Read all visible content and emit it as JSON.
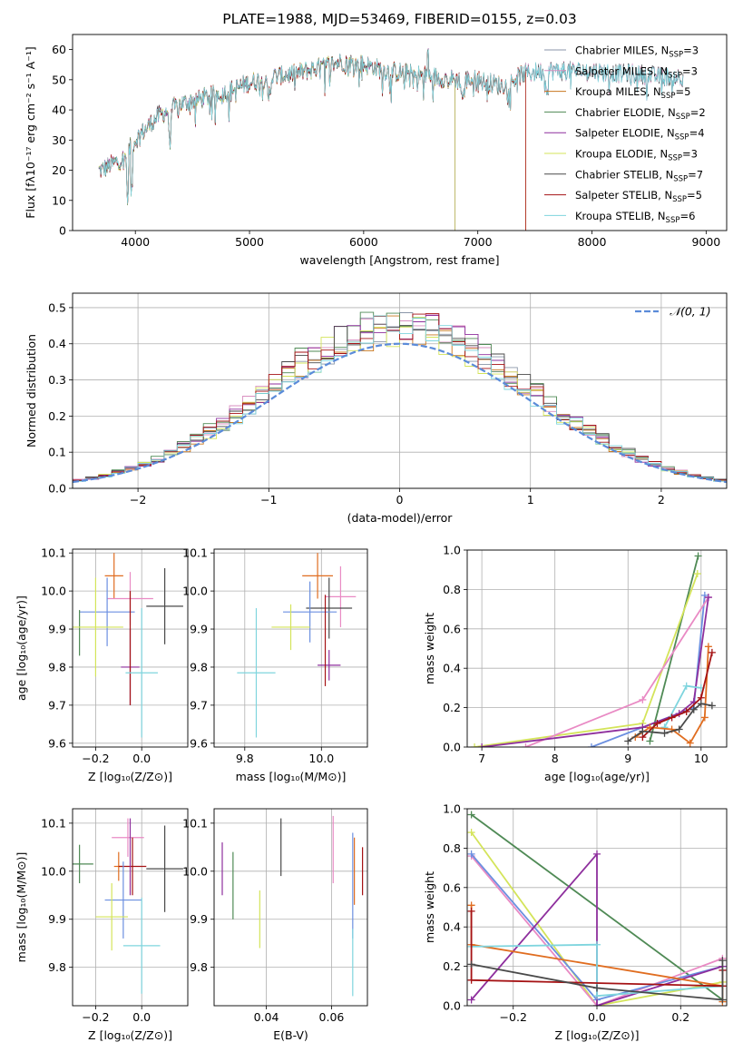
{
  "figure": {
    "title": "PLATE=1988, MJD=53469, FIBERID=0155, z=0.03"
  },
  "colors": {
    "Chabrier MILES": "#8a96a8",
    "Salpeter MILES": "#d98fc0",
    "Kroupa MILES": "#c8771f",
    "Chabrier ELODIE": "#4f8a55",
    "Salpeter ELODIE": "#8e2f9d",
    "Kroupa ELODIE": "#d4e45a",
    "Chabrier STELIB": "#4a4a4a",
    "Salpeter STELIB": "#a51214",
    "Kroupa STELIB": "#7fd5de",
    "normal_curve": "#5b8bd9",
    "c_blue": "#6b8fe0",
    "c_orange": "#e06d20",
    "c_pink": "#e98ac4"
  },
  "chart_data": [
    {
      "id": "spectrum",
      "type": "line",
      "xlabel": "wavelength [Angstrom, rest frame]",
      "ylabel": "Flux [fλ10⁻¹⁷ erg cm⁻² s⁻¹ A⁻¹]",
      "xlim": [
        3450,
        9180
      ],
      "ylim": [
        0,
        65
      ],
      "xticks": [
        4000,
        5000,
        6000,
        7000,
        8000,
        9000
      ],
      "yticks": [
        0,
        10,
        20,
        30,
        40,
        50,
        60
      ],
      "legend_position": "right",
      "legend": [
        {
          "main": "Chabrier MILES, N",
          "sub": "SSP",
          "tail": "=3"
        },
        {
          "main": "Salpeter MILES, N",
          "sub": "SSP",
          "tail": "=3"
        },
        {
          "main": "Kroupa MILES, N",
          "sub": "SSP",
          "tail": "=5"
        },
        {
          "main": "Chabrier ELODIE, N",
          "sub": "SSP",
          "tail": "=2"
        },
        {
          "main": "Salpeter ELODIE, N",
          "sub": "SSP",
          "tail": "=4"
        },
        {
          "main": "Kroupa ELODIE, N",
          "sub": "SSP",
          "tail": "=3"
        },
        {
          "main": "Chabrier STELIB, N",
          "sub": "SSP",
          "tail": "=7"
        },
        {
          "main": "Salpeter STELIB, N",
          "sub": "SSP",
          "tail": "=5"
        },
        {
          "main": "Kroupa STELIB, N",
          "sub": "SSP",
          "tail": "=6"
        }
      ],
      "continuum_x": [
        3700,
        3800,
        3900,
        4000,
        4100,
        4200,
        4400,
        4600,
        4800,
        5000,
        5200,
        5400,
        5600,
        5800,
        6000,
        6200,
        6400,
        6600,
        6800,
        7000,
        7200,
        7400,
        7600,
        7800,
        8000,
        8200,
        8400,
        8600,
        8800
      ],
      "continuum_y": [
        20,
        22,
        24,
        30,
        34,
        38,
        42,
        44,
        46,
        49,
        51,
        52,
        54,
        56,
        55,
        53,
        52,
        51,
        50,
        50,
        48,
        52,
        53,
        53,
        53,
        52,
        52,
        51,
        51
      ],
      "model_ends": {
        "Chabrier MILES": 8800,
        "Salpeter MILES": 8800,
        "Kroupa MILES": 7420,
        "Chabrier ELODIE": 6800,
        "Salpeter ELODIE": 6800,
        "Kroupa ELODIE": 6800,
        "Chabrier STELIB": 8800,
        "Salpeter STELIB": 7420,
        "Kroupa STELIB": 8800
      }
    },
    {
      "id": "residuals",
      "type": "histogram",
      "xlabel": "(data-model)/error",
      "ylabel": "Normed distribution",
      "xlim": [
        -2.5,
        2.5
      ],
      "ylim": [
        0,
        0.54
      ],
      "xticks": [
        -2,
        -1,
        0,
        1,
        2
      ],
      "yticks": [
        0.0,
        0.1,
        0.2,
        0.3,
        0.4,
        0.5
      ],
      "grid": true,
      "legend_position": "top-right",
      "normal_label": "𝒩(0, 1)",
      "bin_width": 0.1,
      "bin_start": -2.5,
      "normal_sigma": 1.0,
      "normal_scale": 0.4,
      "amplitudes": [
        1.1,
        1.14,
        1.08,
        1.16,
        1.12,
        1.1,
        1.15,
        1.13,
        1.09
      ]
    },
    {
      "id": "age-vs-Z",
      "type": "errorbar",
      "xlabel": "Z [log₁₀(Z/Z⊙)]",
      "ylabel": "age  [log₁₀(age/yr)]",
      "xlim": [
        -0.3,
        0.2
      ],
      "ylim": [
        9.59,
        10.11
      ],
      "xticks": [
        -0.2,
        0.0
      ],
      "yticks": [
        9.6,
        9.7,
        9.8,
        9.9,
        10.0,
        10.1
      ],
      "grid": true,
      "points": [
        {
          "c": "c_orange",
          "x": -0.12,
          "xe": 0.04,
          "y": 10.04,
          "ye": 0.06
        },
        {
          "c": "c_pink",
          "x": -0.05,
          "xe": 0.1,
          "y": 9.98,
          "ye": 0.07
        },
        {
          "c": "Chabrier STELIB",
          "x": 0.1,
          "xe": 0.08,
          "y": 9.96,
          "ye": 0.1
        },
        {
          "c": "c_blue",
          "x": -0.15,
          "xe": 0.12,
          "y": 9.945,
          "ye": 0.09
        },
        {
          "c": "Chabrier ELODIE",
          "x": -0.27,
          "xe": 0.0,
          "y": 9.89,
          "ye": 0.06
        },
        {
          "c": "Kroupa ELODIE",
          "x": -0.2,
          "xe": 0.12,
          "y": 9.905,
          "ye": 0.13
        },
        {
          "c": "Salpeter ELODIE",
          "x": -0.05,
          "xe": 0.04,
          "y": 9.8,
          "ye": 0.1
        },
        {
          "c": "Salpeter STELIB",
          "x": -0.05,
          "xe": 0.0,
          "y": 9.85,
          "ye": 0.15
        },
        {
          "c": "Kroupa STELIB",
          "x": 0.0,
          "xe": 0.07,
          "y": 9.785,
          "ye": 0.17
        }
      ]
    },
    {
      "id": "age-vs-mass",
      "type": "errorbar",
      "xlabel": "mass [log₁₀(M/M⊙)]",
      "ylabel": "",
      "xlim": [
        9.72,
        10.12
      ],
      "ylim": [
        9.59,
        10.11
      ],
      "xticks": [
        9.8,
        10.0
      ],
      "yticks": [
        9.6,
        9.7,
        9.8,
        9.9,
        10.0,
        10.1
      ],
      "grid": true,
      "points": [
        {
          "c": "c_orange",
          "x": 9.99,
          "xe": 0.04,
          "y": 10.04,
          "ye": 0.06
        },
        {
          "c": "c_pink",
          "x": 10.05,
          "xe": 0.04,
          "y": 9.985,
          "ye": 0.08
        },
        {
          "c": "Chabrier STELIB",
          "x": 10.02,
          "xe": 0.06,
          "y": 9.955,
          "ye": 0.08
        },
        {
          "c": "c_blue",
          "x": 9.97,
          "xe": 0.07,
          "y": 9.945,
          "ye": 0.08
        },
        {
          "c": "Kroupa ELODIE",
          "x": 9.92,
          "xe": 0.05,
          "y": 9.905,
          "ye": 0.06
        },
        {
          "c": "Salpeter ELODIE",
          "x": 10.02,
          "xe": 0.03,
          "y": 9.805,
          "ye": 0.04
        },
        {
          "c": "Salpeter STELIB",
          "x": 10.01,
          "xe": 0.0,
          "y": 9.87,
          "ye": 0.12
        },
        {
          "c": "Kroupa STELIB",
          "x": 9.83,
          "xe": 0.05,
          "y": 9.785,
          "ye": 0.17
        }
      ]
    },
    {
      "id": "massweight-vs-age",
      "type": "line",
      "xlabel": "age  [log₁₀(age/yr)]",
      "ylabel": "mass weight",
      "xlim": [
        6.8,
        10.35
      ],
      "ylim": [
        0,
        1.0
      ],
      "xticks": [
        7,
        8,
        9,
        10
      ],
      "yticks": [
        0.0,
        0.2,
        0.4,
        0.6,
        0.8,
        1.0
      ],
      "grid": true,
      "series": [
        {
          "c": "Chabrier ELODIE",
          "x": [
            9.3,
            9.96
          ],
          "y": [
            0.03,
            0.97
          ]
        },
        {
          "c": "Kroupa ELODIE",
          "x": [
            6.9,
            9.2,
            9.95
          ],
          "y": [
            0.0,
            0.12,
            0.88
          ]
        },
        {
          "c": "c_blue",
          "x": [
            8.5,
            9.9,
            10.05
          ],
          "y": [
            0.0,
            0.2,
            0.77
          ]
        },
        {
          "c": "c_pink",
          "x": [
            7.6,
            9.2,
            10.1
          ],
          "y": [
            0.0,
            0.24,
            0.76
          ]
        },
        {
          "c": "Salpeter ELODIE",
          "x": [
            7.0,
            9.2,
            9.7,
            9.9,
            10.1
          ],
          "y": [
            0.0,
            0.1,
            0.17,
            0.23,
            0.76
          ]
        },
        {
          "c": "Kroupa STELIB",
          "x": [
            9.5,
            9.8,
            10.0
          ],
          "y": [
            0.1,
            0.31,
            0.3
          ]
        },
        {
          "c": "c_orange",
          "x": [
            9.1,
            9.3,
            9.6,
            9.85,
            10.05,
            10.1
          ],
          "y": [
            0.05,
            0.1,
            0.09,
            0.02,
            0.15,
            0.51
          ]
        },
        {
          "c": "Salpeter STELIB",
          "x": [
            9.2,
            9.4,
            9.6,
            9.8,
            10.0,
            10.15
          ],
          "y": [
            0.05,
            0.12,
            0.15,
            0.18,
            0.25,
            0.48
          ]
        },
        {
          "c": "Chabrier STELIB",
          "x": [
            9.0,
            9.2,
            9.5,
            9.7,
            9.9,
            10.0,
            10.15
          ],
          "y": [
            0.03,
            0.08,
            0.07,
            0.09,
            0.19,
            0.22,
            0.21
          ]
        }
      ]
    },
    {
      "id": "mass-vs-Z",
      "type": "errorbar",
      "xlabel": "Z [log₁₀(Z/Z⊙)]",
      "ylabel": "mass [log₁₀(M/M⊙)]",
      "xlim": [
        -0.3,
        0.2
      ],
      "ylim": [
        9.72,
        10.13
      ],
      "xticks": [
        -0.2,
        0.0
      ],
      "yticks": [
        9.8,
        9.9,
        10.0,
        10.1
      ],
      "grid": true,
      "points": [
        {
          "c": "c_pink",
          "x": -0.06,
          "xe": 0.07,
          "y": 10.07,
          "ye": 0.04
        },
        {
          "c": "c_orange",
          "x": -0.1,
          "xe": 0.02,
          "y": 10.01,
          "ye": 0.03
        },
        {
          "c": "Chabrier STELIB",
          "x": 0.1,
          "xe": 0.08,
          "y": 10.005,
          "ye": 0.09
        },
        {
          "c": "Chabrier ELODIE",
          "x": -0.27,
          "xe": 0.06,
          "y": 10.015,
          "ye": 0.04
        },
        {
          "c": "Salpeter STELIB",
          "x": -0.04,
          "xe": 0.06,
          "y": 10.01,
          "ye": 0.06
        },
        {
          "c": "c_blue",
          "x": -0.08,
          "xe": 0.08,
          "y": 9.94,
          "ye": 0.08
        },
        {
          "c": "Kroupa ELODIE",
          "x": -0.13,
          "xe": 0.07,
          "y": 9.905,
          "ye": 0.07
        },
        {
          "c": "Kroupa STELIB",
          "x": 0.0,
          "xe": 0.08,
          "y": 9.845,
          "ye": 0.1
        },
        {
          "c": "Salpeter ELODIE",
          "x": -0.05,
          "xe": 0.0,
          "y": 10.03,
          "ye": 0.08
        }
      ]
    },
    {
      "id": "mass-vs-EBV",
      "type": "errorbar",
      "xlabel": "E(B-V)",
      "ylabel": "",
      "xlim": [
        0.024,
        0.071
      ],
      "ylim": [
        9.72,
        10.13
      ],
      "xticks": [
        0.04,
        0.06
      ],
      "yticks": [
        9.8,
        9.9,
        10.0,
        10.1
      ],
      "grid": true,
      "points": [
        {
          "c": "Salpeter ELODIE",
          "x": 0.0265,
          "xe": 0.0,
          "y": 10.005,
          "ye": 0.055
        },
        {
          "c": "Chabrier ELODIE",
          "x": 0.0298,
          "xe": 0.0,
          "y": 9.97,
          "ye": 0.07
        },
        {
          "c": "Kroupa ELODIE",
          "x": 0.038,
          "xe": 0.0,
          "y": 9.9,
          "ye": 0.06
        },
        {
          "c": "Chabrier STELIB",
          "x": 0.0445,
          "xe": 0.0,
          "y": 10.05,
          "ye": 0.06
        },
        {
          "c": "c_pink",
          "x": 0.0605,
          "xe": 0.0,
          "y": 10.045,
          "ye": 0.07
        },
        {
          "c": "c_blue",
          "x": 0.0665,
          "xe": 0.0,
          "y": 9.97,
          "ye": 0.11
        },
        {
          "c": "c_orange",
          "x": 0.067,
          "xe": 0.0,
          "y": 10.0,
          "ye": 0.07
        },
        {
          "c": "Kroupa STELIB",
          "x": 0.0665,
          "xe": 0.0,
          "y": 9.81,
          "ye": 0.07
        },
        {
          "c": "Salpeter STELIB",
          "x": 0.0695,
          "xe": 0.0,
          "y": 10.0,
          "ye": 0.05
        }
      ]
    },
    {
      "id": "massweight-vs-Z",
      "type": "line",
      "xlabel": "Z [log₁₀(Z/Z⊙)]",
      "ylabel": "mass weight",
      "xlim": [
        -0.31,
        0.31
      ],
      "ylim": [
        0,
        1.0
      ],
      "xticks": [
        -0.2,
        0.0,
        0.2
      ],
      "yticks": [
        0.0,
        0.2,
        0.4,
        0.6,
        0.8,
        1.0
      ],
      "grid": true,
      "series": [
        {
          "c": "Chabrier ELODIE",
          "x": [
            -0.3,
            0.3
          ],
          "y": [
            0.97,
            0.03
          ]
        },
        {
          "c": "Kroupa ELODIE",
          "x": [
            -0.3,
            0.0,
            0.3
          ],
          "y": [
            0.88,
            0.0,
            0.12
          ]
        },
        {
          "c": "c_pink",
          "x": [
            -0.3,
            0.0,
            0.3
          ],
          "y": [
            0.76,
            0.0,
            0.24
          ]
        },
        {
          "c": "c_blue",
          "x": [
            -0.3,
            0.0,
            0.3
          ],
          "y": [
            0.77,
            0.03,
            0.2
          ]
        },
        {
          "c": "Salpeter ELODIE",
          "x": [
            -0.3,
            0.0,
            0.0,
            0.3
          ],
          "y": [
            0.03,
            0.77,
            0.0,
            0.2
          ]
        },
        {
          "c": "c_orange",
          "x": [
            -0.3,
            -0.3,
            0.3,
            0.3
          ],
          "y": [
            0.51,
            0.31,
            0.1,
            0.02
          ]
        },
        {
          "c": "Kroupa STELIB",
          "x": [
            -0.3,
            0.0,
            0.0,
            0.3
          ],
          "y": [
            0.3,
            0.31,
            0.05,
            0.1
          ]
        },
        {
          "c": "Salpeter STELIB",
          "x": [
            -0.3,
            -0.3,
            0.3,
            0.3
          ],
          "y": [
            0.48,
            0.13,
            0.1,
            0.18
          ]
        },
        {
          "c": "Chabrier STELIB",
          "x": [
            -0.3,
            0.0,
            0.3,
            0.3
          ],
          "y": [
            0.21,
            0.09,
            0.03,
            0.23
          ]
        }
      ]
    }
  ]
}
